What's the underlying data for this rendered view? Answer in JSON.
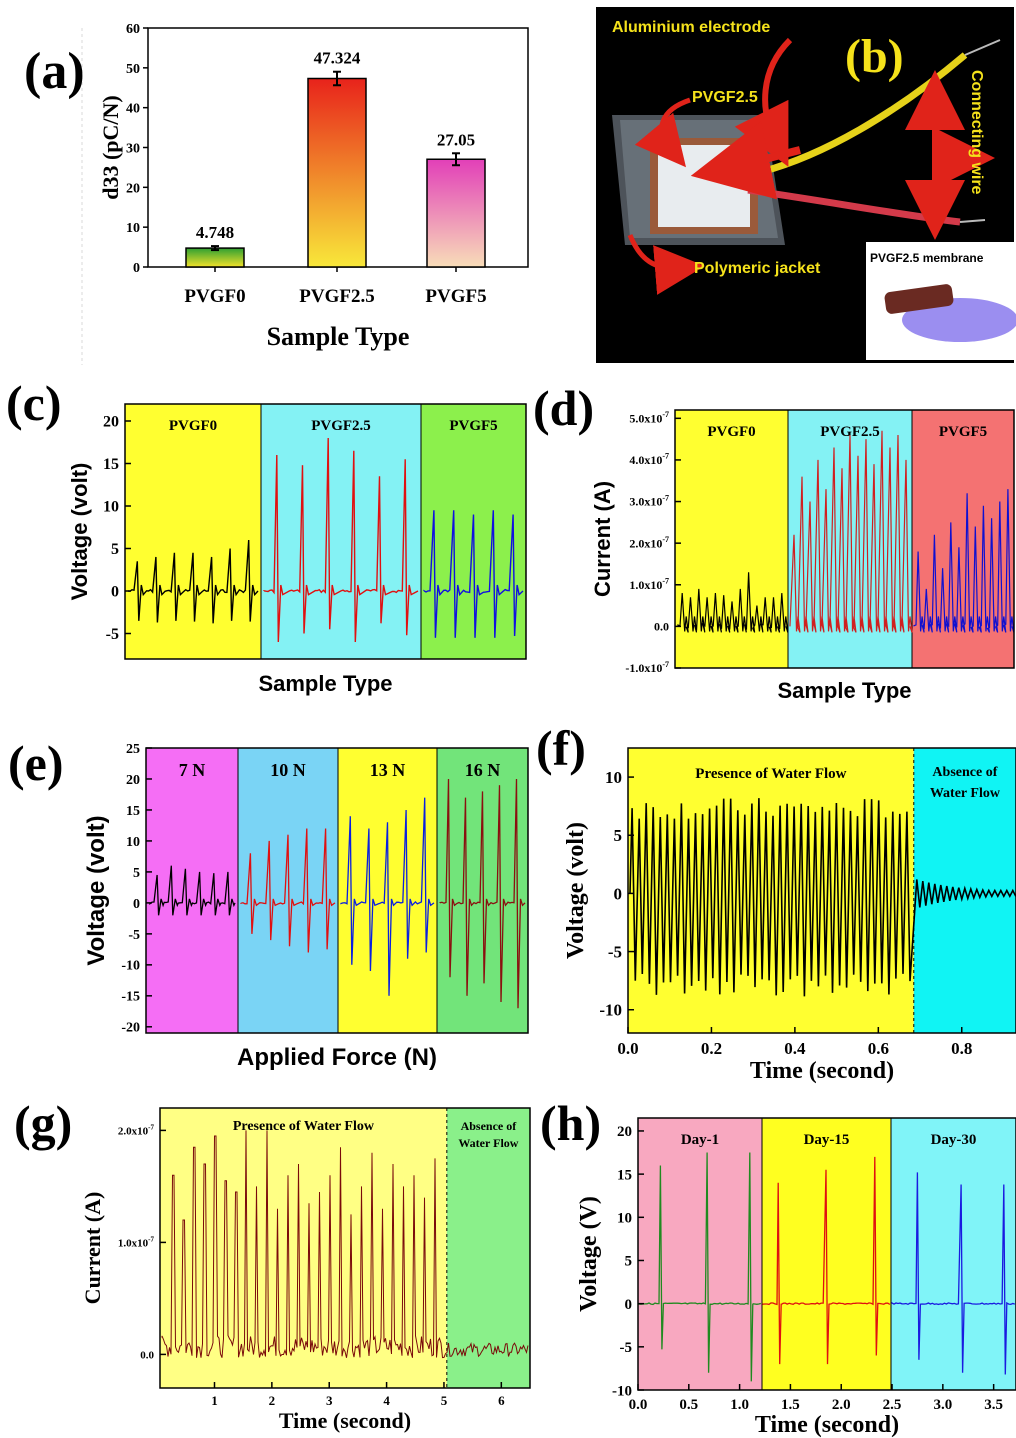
{
  "panels": {
    "a": {
      "letter": "(a)"
    },
    "b": {
      "letter": "(b)"
    },
    "c": {
      "letter": "(c)"
    },
    "d": {
      "letter": "(d)"
    },
    "e": {
      "letter": "(e)"
    },
    "f": {
      "letter": "(f)"
    },
    "g": {
      "letter": "(g)"
    },
    "h": {
      "letter": "(h)"
    }
  },
  "photo": {
    "labels": {
      "electrode": "Aluminium electrode",
      "sample": "PVGF2.5",
      "wire": "Connecting wire",
      "jacket": "Polymeric jacket",
      "membrane": "PVGF2.5 membrane"
    },
    "colors": {
      "annotation": "#f5e21b",
      "arrow": "#e0231a",
      "background": "#000000"
    }
  },
  "chart_data": [
    {
      "id": "a",
      "type": "bar",
      "categories": [
        "PVGF0",
        "PVGF2.5",
        "PVGF5"
      ],
      "values": [
        4.748,
        47.324,
        27.05
      ],
      "value_labels": [
        "4.748",
        "47.324",
        "27.05"
      ],
      "error": [
        0.5,
        1.7,
        1.5
      ],
      "xlabel": "Sample Type",
      "ylabel": "d33 (pC/N)",
      "ylim": [
        0,
        60
      ],
      "yticks": [
        "0",
        "10",
        "20",
        "30",
        "40",
        "50",
        "60"
      ],
      "grid": false,
      "colors": [
        [
          "#2fa032",
          "#f2e22a"
        ],
        [
          "#e8231b",
          "#f8e83a"
        ],
        [
          "#e23fb8",
          "#f8ddb8"
        ]
      ]
    },
    {
      "id": "c",
      "type": "line",
      "xlabel": "Sample Type",
      "ylabel": "Voltage (volt)",
      "ylim": [
        -8,
        22
      ],
      "yticks": [
        "-5",
        "0",
        "5",
        "10",
        "15",
        "20"
      ],
      "regions": [
        {
          "label": "PVGF0",
          "color": "#ffff30"
        },
        {
          "label": "PVGF2.5",
          "color": "#84f2f4"
        },
        {
          "label": "PVGF5",
          "color": "#8cf04c"
        }
      ],
      "series": [
        {
          "line_color": "#000000",
          "peaks": [
            3.5,
            4.0,
            4.5,
            4.5,
            4.0,
            5.0,
            6.0
          ],
          "troughs": [
            -3.5,
            -3.7,
            -3.5,
            -3.6,
            -3.8,
            -3.5,
            -3.6
          ]
        },
        {
          "line_color": "#e01010",
          "peaks": [
            16,
            14.8,
            18,
            16.5,
            13.5,
            15.5
          ],
          "troughs": [
            -6,
            -5,
            -4.5,
            -6,
            -3.8,
            -5.2
          ]
        },
        {
          "line_color": "#1010e0",
          "peaks": [
            9.5,
            9.5,
            9,
            9.5,
            9
          ],
          "troughs": [
            -5.5,
            -5.5,
            -5.5,
            -5.5,
            -5.3
          ]
        }
      ]
    },
    {
      "id": "d",
      "type": "line",
      "xlabel": "Sample Type",
      "ylabel": "Current (A)",
      "ylim": [
        -1e-07,
        5.2e-07
      ],
      "yticks": [
        "-1.0x10",
        "0.0",
        "1.0x10",
        "2.0x10",
        "3.0x10",
        "4.0x10",
        "5.0x10"
      ],
      "ytick_exp": "-7",
      "regions": [
        {
          "label": "PVGF0",
          "color": "#ffff30"
        },
        {
          "label": "PVGF2.5",
          "color": "#84f2f4"
        },
        {
          "label": "PVGF5",
          "color": "#f47272"
        }
      ],
      "series": [
        {
          "line_color": "#000000",
          "peaks": [
            8e-08,
            7e-08,
            9e-08,
            7e-08,
            8e-08,
            7.5e-08,
            6e-08,
            9e-08,
            1.3e-07,
            5e-08,
            7e-08,
            7e-08,
            8e-08
          ]
        },
        {
          "line_color": "#d02020",
          "peaks": [
            2.2e-07,
            3.6e-07,
            3e-07,
            4e-07,
            3.3e-07,
            4.3e-07,
            3.8e-07,
            4.6e-07,
            4.1e-07,
            4.5e-07,
            3.9e-07,
            4.7e-07,
            4.3e-07,
            4.6e-07,
            4e-07
          ]
        },
        {
          "line_color": "#1010d0",
          "peaks": [
            1.8e-07,
            9e-08,
            2.2e-07,
            1.4e-07,
            2.5e-07,
            1.9e-07,
            3.2e-07,
            2.4e-07,
            2.9e-07,
            2.6e-07,
            3e-07,
            3.3e-07
          ]
        }
      ]
    },
    {
      "id": "e",
      "type": "line",
      "xlabel": "Applied Force (N)",
      "ylabel": "Voltage (volt)",
      "ylim": [
        -21,
        25
      ],
      "yticks": [
        "-20",
        "-15",
        "-10",
        "-5",
        "0",
        "5",
        "10",
        "15",
        "20",
        "25"
      ],
      "regions": [
        {
          "label": "7 N",
          "color": "#f56ef5"
        },
        {
          "label": "10 N",
          "color": "#7ad4f5"
        },
        {
          "label": "13 N",
          "color": "#ffff30"
        },
        {
          "label": "16 N",
          "color": "#72e47a"
        }
      ],
      "series": [
        {
          "line_color": "#000000",
          "peaks": [
            4.5,
            6,
            5.5,
            5,
            4.8,
            5
          ],
          "troughs": [
            -2,
            -2,
            -2,
            -2,
            -2,
            -2
          ]
        },
        {
          "line_color": "#e01010",
          "peaks": [
            8,
            10,
            11,
            12,
            12
          ],
          "troughs": [
            -5,
            -6,
            -7,
            -8,
            -7.5
          ]
        },
        {
          "line_color": "#0a20e0",
          "peaks": [
            14,
            12,
            13,
            15,
            17
          ],
          "troughs": [
            -10,
            -11,
            -15,
            -9,
            -8
          ]
        },
        {
          "line_color": "#8a1010",
          "peaks": [
            20,
            17,
            18,
            19,
            20
          ],
          "troughs": [
            -12,
            -15,
            -13,
            -16,
            -17
          ]
        }
      ]
    },
    {
      "id": "f",
      "type": "line",
      "xlabel": "Time (second)",
      "ylabel": "Voltage (volt)",
      "xlim": [
        0.0,
        0.93
      ],
      "ylim": [
        -12,
        12.5
      ],
      "xticks": [
        "0.0",
        "0.2",
        "0.4",
        "0.6",
        "0.8"
      ],
      "yticks": [
        "-10",
        "-5",
        "0",
        "5",
        "10"
      ],
      "regions": [
        {
          "label": "Presence of Water Flow",
          "color": "#ffff30"
        },
        {
          "label": "Absence of Water Flow",
          "color": "#10f4f4"
        }
      ],
      "boundary_x": 0.685,
      "series": [
        {
          "line_color": "#000000",
          "cycles": 40,
          "amplitude_pos": 7.5,
          "amplitude_neg": -8.5,
          "decay_amplitude": 1.2
        }
      ]
    },
    {
      "id": "g",
      "type": "line",
      "xlabel": "Time (second)",
      "ylabel": "Current (A)",
      "xlim": [
        0.05,
        6.5
      ],
      "ylim": [
        -3e-08,
        2.2e-07
      ],
      "xticks": [
        "1",
        "2",
        "3",
        "4",
        "5",
        "6"
      ],
      "yticks": [
        "0.0",
        "1.0x10",
        "2.0x10"
      ],
      "ytick_exp": "-7",
      "regions": [
        {
          "label": "Presence of Water Flow",
          "color": "#ffff84"
        },
        {
          "label": "Absence of Water Flow",
          "color": "#8af08a"
        }
      ],
      "boundary_x": 5.05,
      "series": [
        {
          "line_color": "#7a0a0a",
          "peaks": [
            1.6e-07,
            1.2e-07,
            1.85e-07,
            1.7e-07,
            1.95e-07,
            1.55e-07,
            1.45e-07,
            2e-07,
            1.5e-07,
            2e-07,
            1.3e-07,
            1.6e-07,
            1.7e-07,
            1.35e-07,
            1.45e-07,
            1.6e-07,
            1.85e-07,
            1.25e-07,
            1.5e-07,
            1.8e-07,
            1.3e-07,
            1.7e-07,
            1.5e-07,
            1.6e-07,
            1.4e-07,
            1.75e-07
          ],
          "noise_level": 2e-08
        }
      ]
    },
    {
      "id": "h",
      "type": "line",
      "xlabel": "Time (second)",
      "ylabel": "Voltage (V)",
      "xlim": [
        0.0,
        3.72
      ],
      "ylim": [
        -10,
        21.5
      ],
      "xticks": [
        "0.0",
        "0.5",
        "1.0",
        "1.5",
        "2.0",
        "2.5",
        "3.0",
        "3.5"
      ],
      "yticks": [
        "-10",
        "-5",
        "0",
        "5",
        "10",
        "15",
        "20"
      ],
      "regions": [
        {
          "label": "Day-1",
          "color": "#f8a8c0"
        },
        {
          "label": "Day-15",
          "color": "#ffff20"
        },
        {
          "label": "Day-30",
          "color": "#80f4f8"
        }
      ],
      "series": [
        {
          "line_color": "#208a20",
          "peak_x": [
            0.22,
            0.68,
            1.1
          ],
          "peaks": [
            16,
            17.5,
            17.5
          ],
          "troughs": [
            -5.3,
            -8,
            -9
          ]
        },
        {
          "line_color": "#e01010",
          "peak_x": [
            1.38,
            1.85,
            2.33
          ],
          "peaks": [
            14,
            15.5,
            17
          ],
          "troughs": [
            -7,
            -7,
            -6
          ]
        },
        {
          "line_color": "#1a1ae0",
          "peak_x": [
            2.75,
            3.18,
            3.6
          ],
          "peaks": [
            15.2,
            13.8,
            13.8
          ],
          "troughs": [
            -6.5,
            -8,
            -8.2
          ]
        }
      ]
    }
  ]
}
